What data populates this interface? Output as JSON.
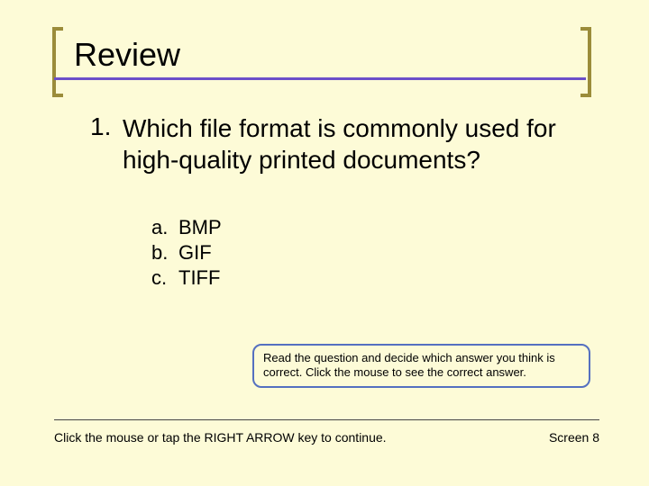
{
  "title": "Review",
  "question": {
    "number": "1.",
    "text": "Which file format is commonly used for high-quality printed documents?"
  },
  "options": [
    {
      "letter": "a.",
      "text": "BMP"
    },
    {
      "letter": "b.",
      "text": "GIF"
    },
    {
      "letter": "c.",
      "text": "TIFF"
    }
  ],
  "hint": "Read the question and decide which answer you think is correct. Click the mouse to see the correct answer.",
  "footer": {
    "instruction": "Click the mouse or tap the RIGHT ARROW key to continue.",
    "screen": "Screen 8"
  },
  "colors": {
    "background": "#fdfbd7",
    "title_underline": "#6b4fc9",
    "bracket": "#9b8c3a",
    "hint_border": "#5570c0",
    "text": "#000000"
  },
  "fonts": {
    "title_size": 36,
    "question_size": 28,
    "option_size": 22,
    "hint_size": 13,
    "footer_size": 14
  }
}
